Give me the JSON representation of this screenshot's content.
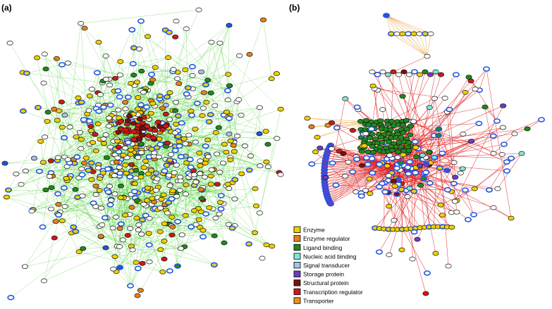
{
  "panels": {
    "a": {
      "label": "(a)"
    },
    "b": {
      "label": "(b)"
    }
  },
  "legend": {
    "items": [
      {
        "label": "Enzyme",
        "color": "#f0d000"
      },
      {
        "label": "Enzyme regulator",
        "color": "#e8801a"
      },
      {
        "label": "Ligand binding",
        "color": "#1f8a1f"
      },
      {
        "label": "Nucleic acid binding",
        "color": "#7fe8d8"
      },
      {
        "label": "Signal transducer",
        "color": "#a8c0e8"
      },
      {
        "label": "Storage protein",
        "color": "#6a3ec0"
      },
      {
        "label": "Structural protein",
        "color": "#7a1010"
      },
      {
        "label": "Transcription regulator",
        "color": "#d01818"
      },
      {
        "label": "Transporter",
        "color": "#e89020"
      }
    ]
  },
  "colors": {
    "edge_a": "#44cc2a",
    "edge_b_primary": "#e02222",
    "edge_b_secondary": "#e8a040",
    "node_ring": "#2255dd",
    "node_plain": "#ffffff",
    "node_outline": "#111111"
  }
}
